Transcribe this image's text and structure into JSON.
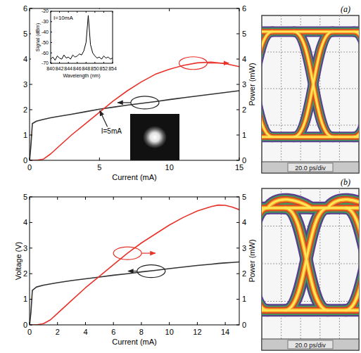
{
  "chart_data": [
    {
      "type": "line",
      "xlabel": "Current (mA)",
      "y2label": "Power (mW)",
      "x": [
        0,
        0.1,
        0.2,
        0.5,
        1,
        1.5,
        2,
        3,
        4,
        5,
        6,
        7,
        8,
        9,
        10,
        11,
        12,
        13,
        14,
        15
      ],
      "xlim": [
        0,
        15
      ],
      "xticks": [
        0,
        5,
        10,
        15
      ],
      "ylim": [
        0,
        6
      ],
      "yticks": [
        0,
        1,
        2,
        3,
        4,
        5,
        6
      ],
      "y2lim": [
        0,
        6
      ],
      "y2ticks": [
        0,
        1,
        2,
        3,
        4,
        5,
        6
      ],
      "series": [
        {
          "color": "#333333",
          "values": [
            0,
            0.6,
            1.45,
            1.55,
            1.62,
            1.68,
            1.73,
            1.82,
            1.92,
            2.02,
            2.1,
            2.18,
            2.25,
            2.32,
            2.4,
            2.47,
            2.54,
            2.61,
            2.68,
            2.75
          ]
        },
        {
          "color": "#e8322a",
          "axis": "y2",
          "values": [
            0,
            0,
            0,
            0,
            0.05,
            0.25,
            0.5,
            1.0,
            1.45,
            1.9,
            2.35,
            2.75,
            3.1,
            3.4,
            3.6,
            3.75,
            3.85,
            3.88,
            3.82,
            3.7
          ]
        }
      ],
      "annotations": [
        {
          "text": "I=5mA",
          "x": 5
        }
      ]
    },
    {
      "type": "line",
      "xlabel": "Wavelength (nm)",
      "ylabel": "Signal (dBm)",
      "x": [
        840,
        840.5,
        841,
        841.5,
        842,
        842.5,
        843,
        843.5,
        844,
        844.5,
        845,
        845.5,
        846,
        846.5,
        847,
        847.5,
        848,
        848.5,
        849,
        849.5,
        850,
        850.5,
        851,
        851.5,
        852,
        852.5,
        853,
        853.5,
        854
      ],
      "xlim": [
        840,
        854
      ],
      "xticks": [
        840,
        842,
        844,
        846,
        848,
        850,
        852,
        854
      ],
      "ylim": [
        -70,
        -20
      ],
      "yticks": [
        -20,
        -30,
        -40,
        -50,
        -60,
        -70
      ],
      "series": [
        {
          "color": "#000000",
          "values": [
            -66,
            -64,
            -67,
            -63,
            -65,
            -66,
            -62,
            -65,
            -64,
            -66,
            -62,
            -64,
            -63,
            -61,
            -62,
            -58,
            -50,
            -24,
            -52,
            -60,
            -63,
            -65,
            -64,
            -66,
            -63,
            -65,
            -64,
            -66,
            -65
          ]
        }
      ],
      "annotations": [
        {
          "text": "I=10mA"
        }
      ]
    },
    {
      "type": "line",
      "xlabel": "Current (mA)",
      "ylabel": "Voltage (V)",
      "y2label": "Power (mW)",
      "x": [
        0,
        0.1,
        0.2,
        0.5,
        1,
        1.5,
        2,
        3,
        4,
        5,
        6,
        7,
        8,
        9,
        10,
        11,
        12,
        13,
        13.5,
        14,
        14.5,
        15
      ],
      "xlim": [
        0,
        15
      ],
      "xticks": [
        0,
        2,
        4,
        6,
        8,
        10,
        12,
        14
      ],
      "ylim": [
        0,
        5
      ],
      "yticks": [
        0,
        1,
        2,
        3,
        4,
        5
      ],
      "y2lim": [
        0,
        5
      ],
      "y2ticks": [
        0,
        1,
        2,
        3,
        4,
        5
      ],
      "series": [
        {
          "color": "#333333",
          "values": [
            0,
            0.5,
            1.35,
            1.48,
            1.55,
            1.6,
            1.65,
            1.73,
            1.8,
            1.87,
            1.94,
            2.0,
            2.07,
            2.13,
            2.2,
            2.26,
            2.32,
            2.37,
            2.4,
            2.42,
            2.44,
            2.46
          ]
        },
        {
          "color": "#e8322a",
          "axis": "y2",
          "values": [
            0,
            0,
            0,
            0,
            0.05,
            0.2,
            0.45,
            0.95,
            1.45,
            1.9,
            2.35,
            2.8,
            3.2,
            3.55,
            3.9,
            4.2,
            4.45,
            4.62,
            4.68,
            4.67,
            4.6,
            4.5
          ]
        }
      ]
    },
    {
      "type": "eye_diagram",
      "title": "(a)",
      "xlabel": "20.0 ps/div"
    },
    {
      "type": "eye_diagram",
      "title": "(b)",
      "xlabel": "20.0 ps/div"
    }
  ]
}
